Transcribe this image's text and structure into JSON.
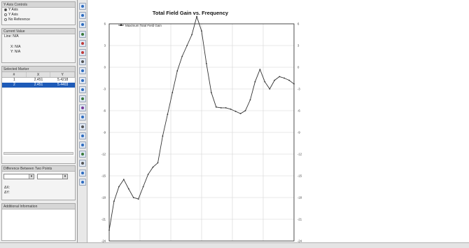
{
  "left_panel": {
    "y_axis_group": {
      "title": "Y-Axis Controls",
      "options": [
        {
          "label": "Y Axis",
          "selected": true
        },
        {
          "label": "Y Axis",
          "selected": false
        },
        {
          "label": "No Reference",
          "selected": false
        }
      ]
    },
    "cursor_group": {
      "title": "Current Value",
      "line_label": "Line: N/A",
      "x_label": "X: N/A",
      "y_label": "Y: N/A"
    },
    "marker_group": {
      "title": "Selected Marker",
      "columns": [
        "#",
        "X",
        "Y"
      ],
      "rows": [
        {
          "id": "1",
          "x": "2.451",
          "y": "5.4218"
        },
        {
          "id": "2",
          "x": "2.451",
          "y": "5.4403"
        }
      ],
      "selected_row": 1
    },
    "difference_group": {
      "title": "Difference Between Two Points",
      "dx_label": "ΔX:",
      "dy_label": "ΔY:"
    },
    "info_group": {
      "title": "Additional Information"
    }
  },
  "toolbar": {
    "tools": [
      "zoom-in-icon",
      "zoom-out-icon",
      "zoom-fit-icon",
      "pan-icon",
      "marker-icon",
      "delete-marker-icon",
      "pointer-icon",
      "cut-icon",
      "copy-icon",
      "paste-icon",
      "grid-icon",
      "legend-icon",
      "export-icon",
      "print-icon",
      "settings-icon",
      "table-icon",
      "chart-icon",
      "camera-icon",
      "help-icon",
      "info-icon"
    ]
  },
  "chart_data": {
    "type": "line",
    "title": "Total Field Gain vs. Frequency",
    "xlabel": "",
    "ylabel": "",
    "ylim": [
      -24,
      6
    ],
    "legend": {
      "position": "top-left",
      "entries": [
        "Maximum Total Field Gain"
      ]
    },
    "y_ticks": [
      "6",
      "3",
      "0",
      "-3",
      "-6",
      "-9",
      "-12",
      "-15",
      "-18",
      "-21",
      "-24"
    ],
    "grid": true,
    "series": [
      {
        "name": "Maximum Total Field Gain",
        "color": "#333333",
        "points": [
          [
            0,
            -22.5
          ],
          [
            1,
            -18.5
          ],
          [
            2,
            -16.5
          ],
          [
            3,
            -15.5
          ],
          [
            4,
            -16.8
          ],
          [
            5,
            -18
          ],
          [
            6,
            -18.2
          ],
          [
            7,
            -16.5
          ],
          [
            8,
            -14.8
          ],
          [
            9,
            -13.8
          ],
          [
            10,
            -13.2
          ],
          [
            11,
            -9.5
          ],
          [
            12,
            -6.5
          ],
          [
            13,
            -3.5
          ],
          [
            14,
            -0.5
          ],
          [
            15,
            1.5
          ],
          [
            16,
            3.0
          ],
          [
            17,
            4.5
          ],
          [
            18,
            7.0
          ],
          [
            19,
            5.0
          ],
          [
            20,
            0.5
          ],
          [
            21,
            -3.5
          ],
          [
            22,
            -5.5
          ],
          [
            23,
            -5.6
          ],
          [
            24,
            -5.6
          ],
          [
            25,
            -5.8
          ],
          [
            26,
            -6.1
          ],
          [
            27,
            -6.4
          ],
          [
            28,
            -6.0
          ],
          [
            29,
            -4.5
          ],
          [
            30,
            -2.0
          ],
          [
            31,
            -0.3
          ],
          [
            32,
            -2.0
          ],
          [
            33,
            -3.0
          ],
          [
            34,
            -1.8
          ],
          [
            35,
            -1.3
          ],
          [
            36,
            -1.5
          ],
          [
            37,
            -1.8
          ],
          [
            38,
            -2.3
          ]
        ]
      }
    ]
  }
}
